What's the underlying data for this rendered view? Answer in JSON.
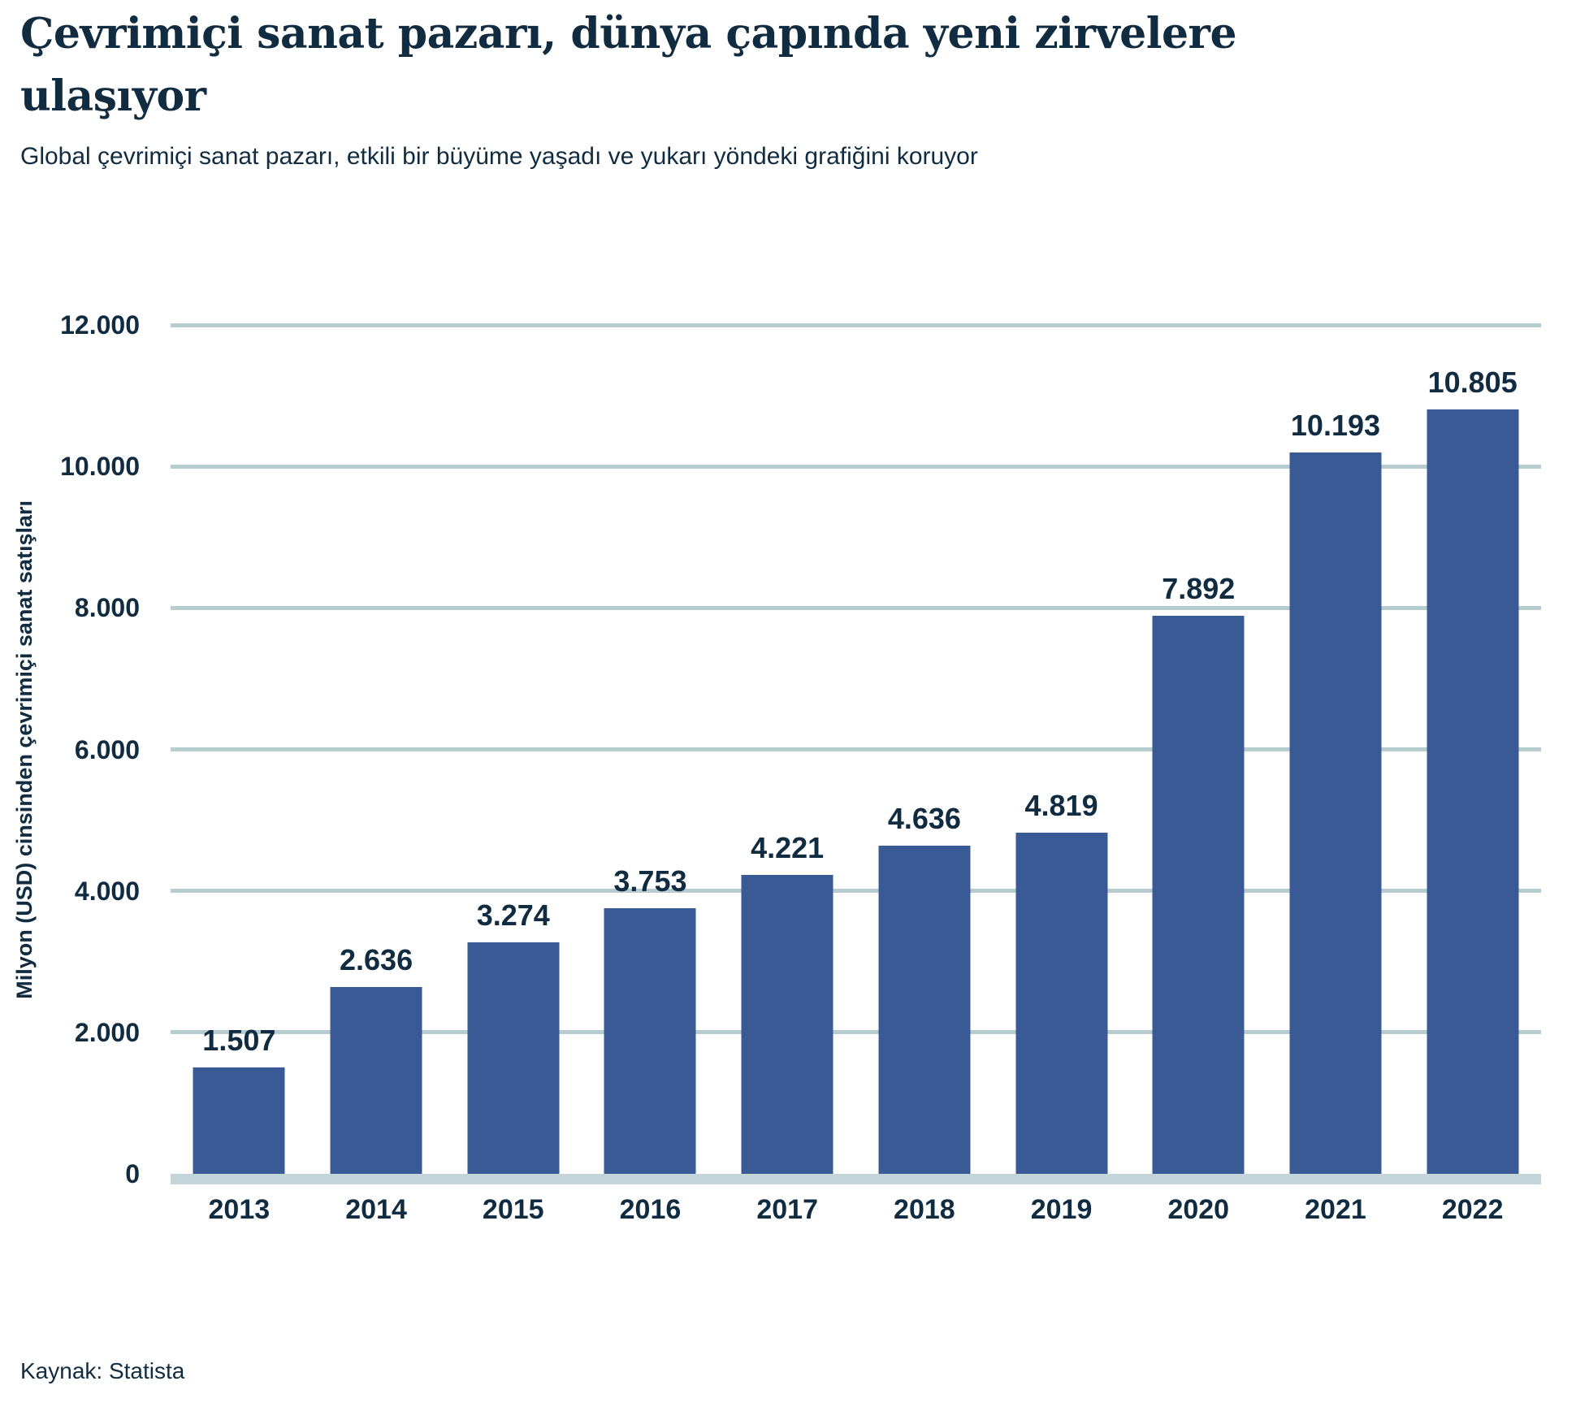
{
  "header": {
    "title": "Çevrimiçi sanat pazarı, dünya çapında yeni zirvelere ulaşıyor",
    "subtitle": "Global çevrimiçi sanat pazarı, etkili bir büyüme yaşadı ve yukarı yöndeki grafiğini koruyor"
  },
  "footer": {
    "source": "Kaynak: Statista"
  },
  "colors": {
    "bar": "#3a5a96",
    "gridline": "#b6cccf",
    "baseline": "#c3d5d8",
    "text": "#112c40"
  },
  "chart_data": {
    "type": "bar",
    "title": "Çevrimiçi sanat pazarı, dünya çapında yeni zirvelere ulaşıyor",
    "subtitle": "Global çevrimiçi sanat pazarı, etkili bir büyüme yaşadı ve yukarı yöndeki grafiğini koruyor",
    "categories": [
      "2013",
      "2014",
      "2015",
      "2016",
      "2017",
      "2018",
      "2019",
      "2020",
      "2021",
      "2022"
    ],
    "values": [
      1507,
      2636,
      3274,
      3753,
      4221,
      4636,
      4819,
      7892,
      10193,
      10805
    ],
    "value_labels": [
      "1.507",
      "2.636",
      "3.274",
      "3.753",
      "4.221",
      "4.636",
      "4.819",
      "7.892",
      "10.193",
      "10.805"
    ],
    "xlabel": "",
    "ylabel": "Milyon (USD) cinsinden çevrimiçi sanat satışları",
    "ylim": [
      0,
      12000
    ],
    "yticks": [
      {
        "value": 0,
        "label": "0"
      },
      {
        "value": 2000,
        "label": "2.000"
      },
      {
        "value": 4000,
        "label": "4.000"
      },
      {
        "value": 6000,
        "label": "6.000"
      },
      {
        "value": 8000,
        "label": "8.000"
      },
      {
        "value": 10000,
        "label": "10.000"
      },
      {
        "value": 12000,
        "label": "12.000"
      }
    ],
    "grid": true,
    "legend": false,
    "source": "Kaynak: Statista"
  }
}
